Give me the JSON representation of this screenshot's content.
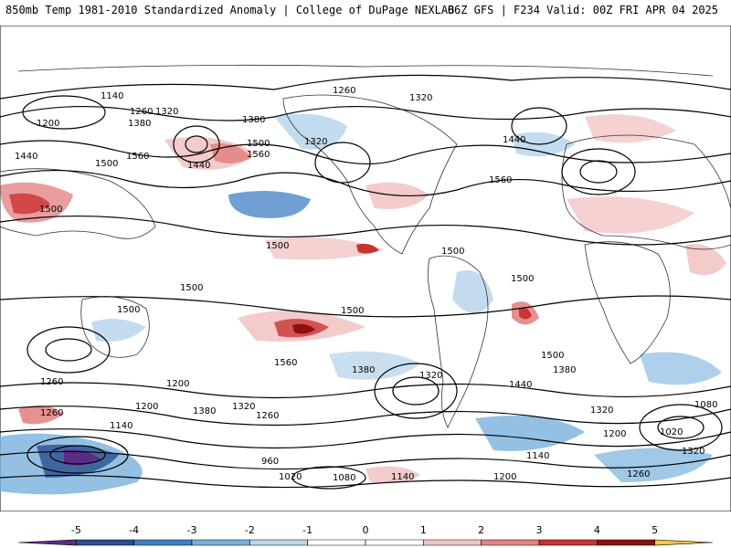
{
  "header": {
    "left_title": "850mb Temp 1981-2010 Standardized Anomaly | College of DuPage NEXLAB",
    "right_title": "06Z GFS | F234 Valid: 00Z FRI APR 04 2025"
  },
  "colorbar": {
    "ticks": [
      "-5",
      "-4",
      "-3",
      "-2",
      "-1",
      "0",
      "1",
      "2",
      "3",
      "4",
      "5"
    ],
    "colors": [
      "#5b2c83",
      "#2b4f8f",
      "#3f7fc4",
      "#79b0dc",
      "#bcd7ec",
      "#ffffff",
      "#ffffff",
      "#f2c5c5",
      "#e38585",
      "#c93333",
      "#8e0f0f",
      "#f5c542"
    ]
  },
  "contour_labels": [
    {
      "text": "1140"
    },
    {
      "text": "1260"
    },
    {
      "text": "1320"
    },
    {
      "text": "1200"
    },
    {
      "text": "1380"
    },
    {
      "text": "1500"
    },
    {
      "text": "1560"
    },
    {
      "text": "1440"
    },
    {
      "text": "1320"
    },
    {
      "text": "1260"
    },
    {
      "text": "1320"
    },
    {
      "text": "1380"
    },
    {
      "text": "1440"
    },
    {
      "text": "1500"
    },
    {
      "text": "1560"
    },
    {
      "text": "1500"
    },
    {
      "text": "1500"
    },
    {
      "text": "1500"
    },
    {
      "text": "1500"
    },
    {
      "text": "1500"
    },
    {
      "text": "1500"
    },
    {
      "text": "1500"
    },
    {
      "text": "1560"
    },
    {
      "text": "1380"
    },
    {
      "text": "1320"
    },
    {
      "text": "1440"
    },
    {
      "text": "1500"
    },
    {
      "text": "1380"
    },
    {
      "text": "1320"
    },
    {
      "text": "1200"
    },
    {
      "text": "1080"
    },
    {
      "text": "1020"
    },
    {
      "text": "1260"
    },
    {
      "text": "1140"
    },
    {
      "text": "1200"
    },
    {
      "text": "1380"
    },
    {
      "text": "1320"
    },
    {
      "text": "1260"
    },
    {
      "text": "960"
    },
    {
      "text": "1020"
    },
    {
      "text": "1080"
    },
    {
      "text": "1140"
    },
    {
      "text": "1200"
    },
    {
      "text": "1260"
    },
    {
      "text": "1140"
    },
    {
      "text": "1320"
    },
    {
      "text": "1260"
    },
    {
      "text": "1200"
    },
    {
      "text": "1560"
    },
    {
      "text": "1440"
    }
  ]
}
